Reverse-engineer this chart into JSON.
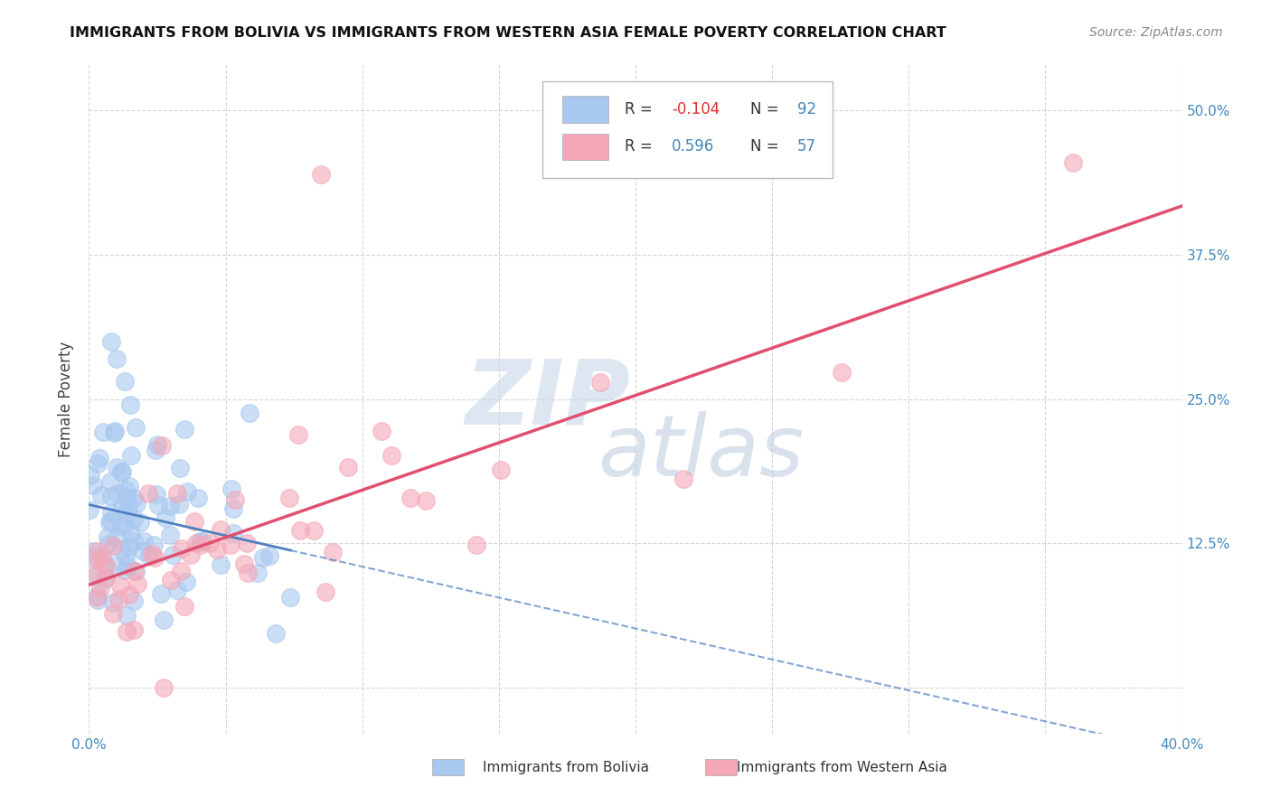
{
  "title": "IMMIGRANTS FROM BOLIVIA VS IMMIGRANTS FROM WESTERN ASIA FEMALE POVERTY CORRELATION CHART",
  "source": "Source: ZipAtlas.com",
  "ylabel": "Female Poverty",
  "ytick_labels": [
    "",
    "12.5%",
    "25.0%",
    "37.5%",
    "50.0%"
  ],
  "ytick_values": [
    0.0,
    0.125,
    0.25,
    0.375,
    0.5
  ],
  "xlim": [
    0.0,
    0.4
  ],
  "ylim": [
    -0.04,
    0.54
  ],
  "color_bolivia": "#A8C8F0",
  "color_western_asia": "#F4A8B8",
  "color_line_bolivia": "#5080C0",
  "color_line_western_asia": "#E05070",
  "watermark_zip_color": "#C8D8E8",
  "watermark_atlas_color": "#C0D0E0",
  "bolivia_label": "Immigrants from Bolivia",
  "western_asia_label": "Immigrants from Western Asia",
  "r_bolivia": -0.104,
  "n_bolivia": 92,
  "r_western": 0.596,
  "n_western": 57
}
